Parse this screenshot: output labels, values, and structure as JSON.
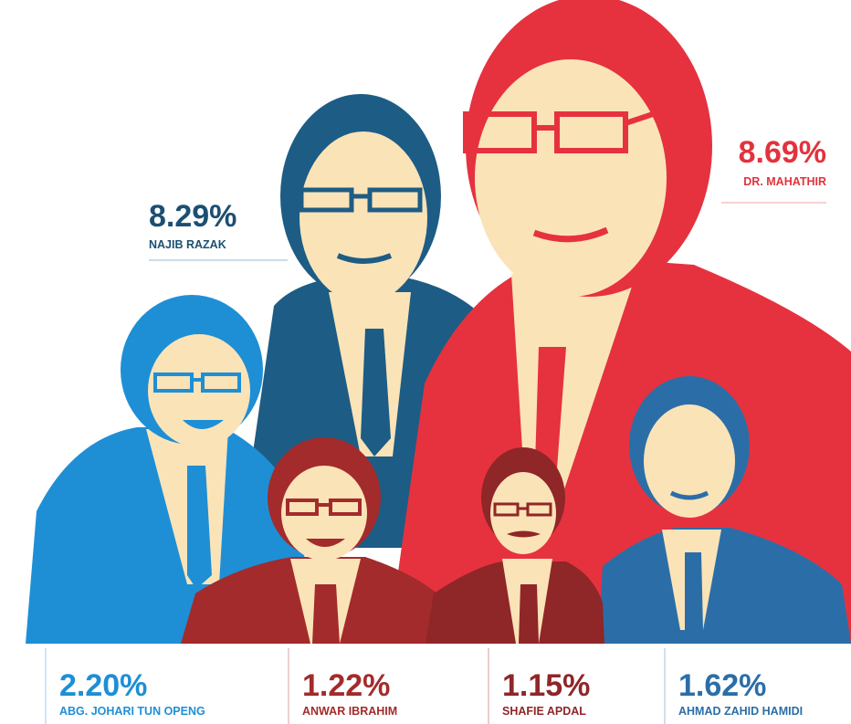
{
  "people": [
    {
      "percent": "8.29%",
      "name": "NAJIB RAZAK"
    },
    {
      "percent": "8.69%",
      "name": "DR. MAHATHIR"
    },
    {
      "percent": "2.20%",
      "name": "ABG. JOHARI TUN OPENG"
    },
    {
      "percent": "1.22%",
      "name": "ANWAR IBRAHIM"
    },
    {
      "percent": "1.15%",
      "name": "SHAFIE APDAL"
    },
    {
      "percent": "1.62%",
      "name": "AHMAD ZAHID HAMIDI"
    }
  ]
}
